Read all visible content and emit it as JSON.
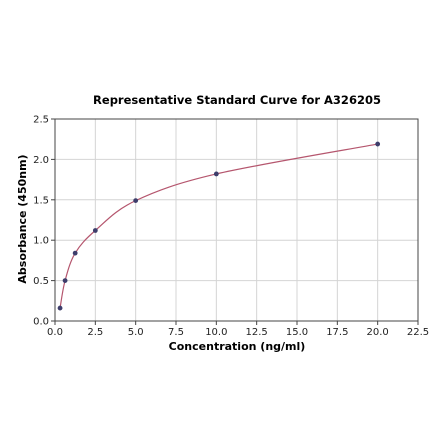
{
  "chart_data": {
    "type": "scatter",
    "title": "Representative Standard Curve for A326205",
    "xlabel": "Concentration (ng/ml)",
    "ylabel": "Absorbance (450nm)",
    "xlim": [
      0,
      22.5
    ],
    "ylim": [
      0,
      2.5
    ],
    "x_ticks": [
      0,
      2.5,
      5,
      7.5,
      10,
      12.5,
      15,
      17.5,
      20,
      22.5
    ],
    "x_tick_labels": [
      "0.0",
      "2.5",
      "5.0",
      "7.5",
      "10.0",
      "12.5",
      "15.0",
      "17.5",
      "20.0",
      "22.5"
    ],
    "y_ticks": [
      0,
      0.5,
      1,
      1.5,
      2,
      2.5
    ],
    "y_tick_labels": [
      "0.0",
      "0.5",
      "1.0",
      "1.5",
      "2.0",
      "2.5"
    ],
    "grid": true,
    "series": [
      {
        "x": [
          0.313,
          0.625,
          1.25,
          2.5,
          5,
          10,
          20
        ],
        "y": [
          0.16,
          0.5,
          0.84,
          1.12,
          1.49,
          1.82,
          2.19
        ],
        "marker_color": "#3d3d6b",
        "line_color": "#b5566e",
        "fit": "smooth curve through points"
      }
    ]
  }
}
